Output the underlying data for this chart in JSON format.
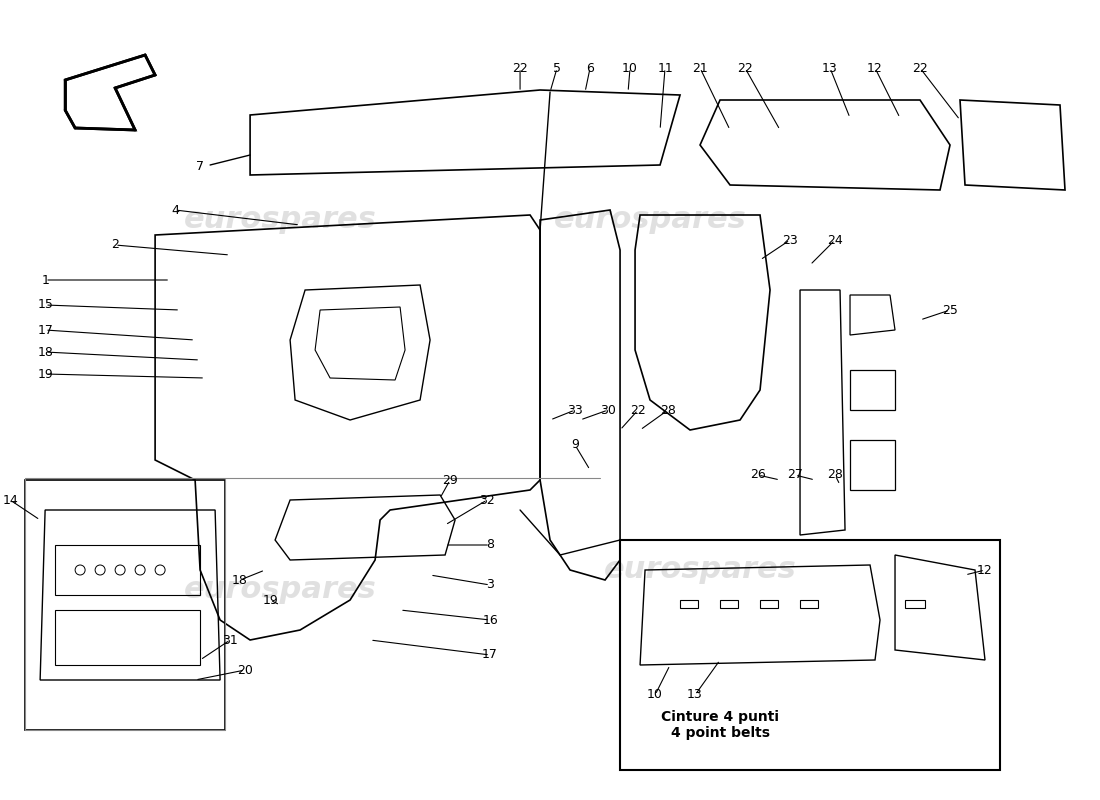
{
  "title": "",
  "background_color": "#ffffff",
  "watermark_color": "#d0d0d0",
  "watermark_text": "eurospares",
  "line_color": "#000000",
  "label_numbers": [
    1,
    2,
    3,
    4,
    5,
    6,
    7,
    8,
    9,
    10,
    11,
    12,
    13,
    14,
    15,
    16,
    17,
    18,
    19,
    20,
    21,
    22,
    23,
    24,
    25,
    26,
    27,
    28,
    29,
    30,
    31,
    32,
    33
  ],
  "callout_box_text": "Cinture 4 punti\n4 point belts",
  "fig_width": 11.0,
  "fig_height": 8.0
}
